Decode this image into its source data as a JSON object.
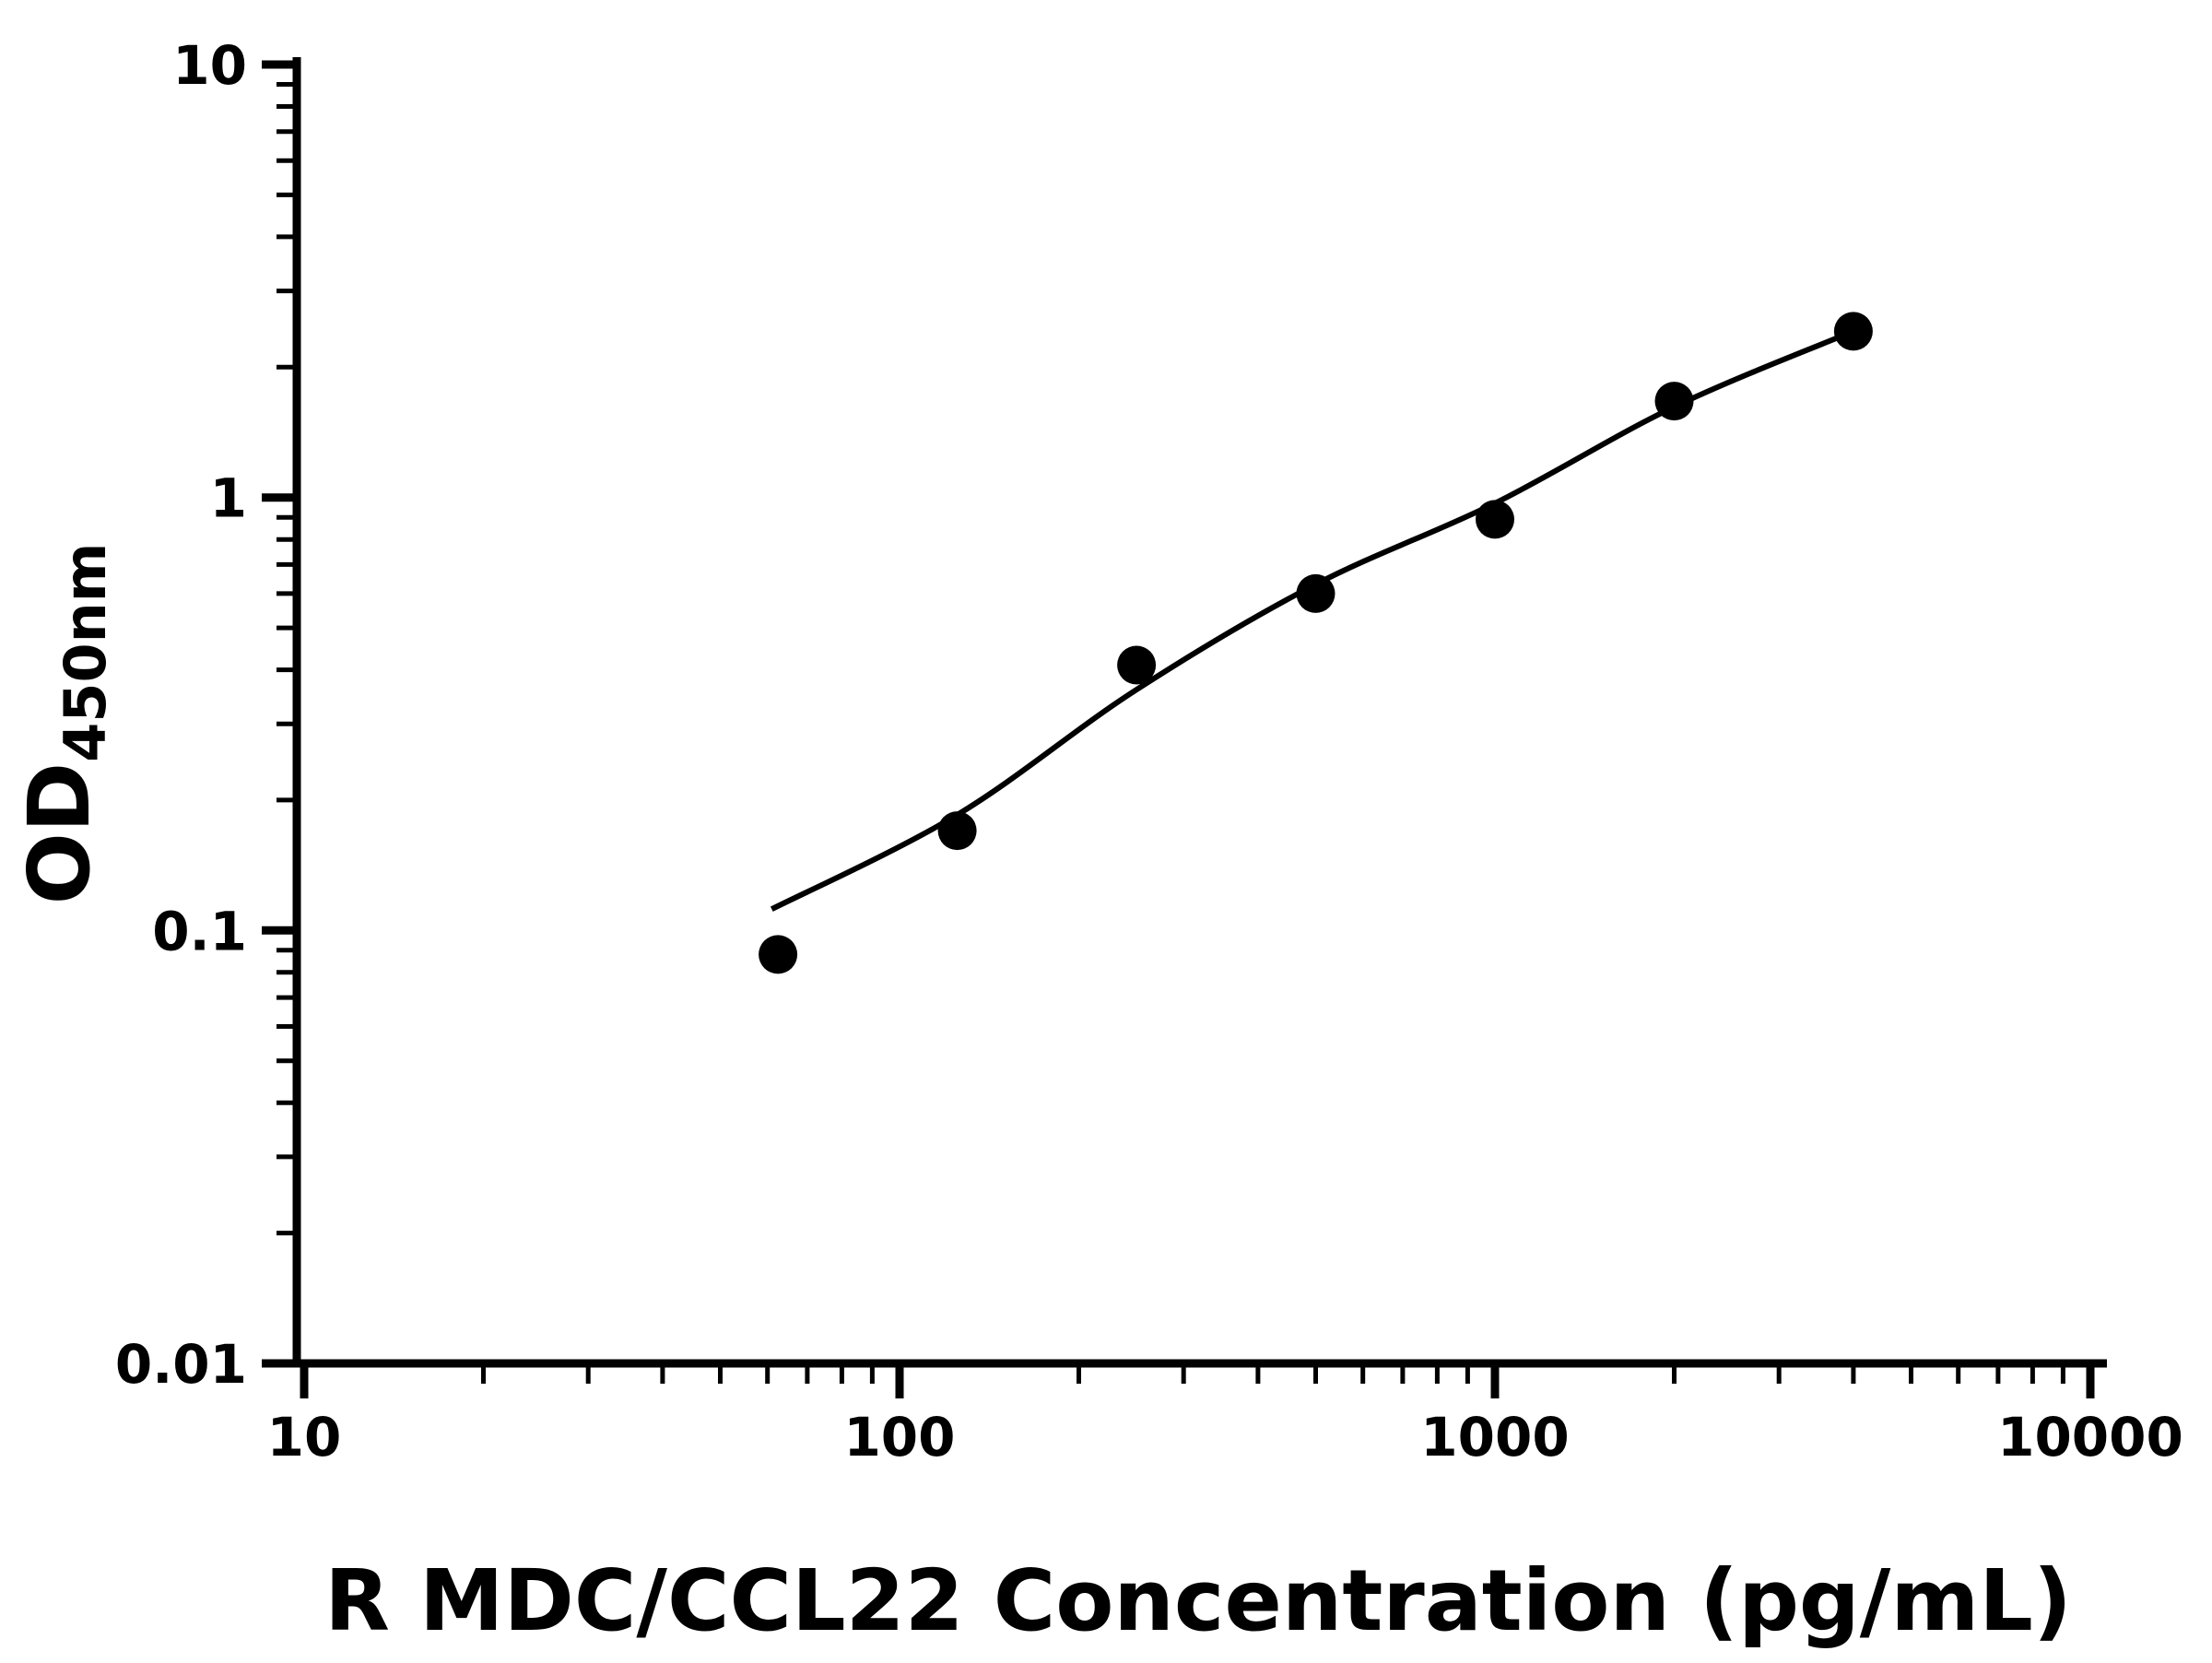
{
  "chart_data": {
    "type": "scatter",
    "title": "",
    "xlabel": "R MDC/CCL22 Concentration (pg/mL)",
    "ylabel_main": "OD",
    "ylabel_sub": "450nm",
    "x_scale": "log",
    "y_scale": "log",
    "xlim": [
      10,
      10000
    ],
    "ylim": [
      0.01,
      10
    ],
    "x_ticks": [
      10,
      100,
      1000,
      10000
    ],
    "x_tick_labels": [
      "10",
      "100",
      "1000",
      "10000"
    ],
    "y_ticks": [
      0.01,
      0.1,
      1,
      10
    ],
    "y_tick_labels": [
      "0.01",
      "0.1",
      "1",
      "10"
    ],
    "grid": false,
    "legend": "none",
    "series": [
      {
        "name": "standard-curve-points",
        "type": "scatter",
        "marker": "circle",
        "color": "#000000",
        "points": [
          {
            "x": 62.5,
            "y": 0.088
          },
          {
            "x": 125,
            "y": 0.17
          },
          {
            "x": 250,
            "y": 0.41
          },
          {
            "x": 500,
            "y": 0.6
          },
          {
            "x": 1000,
            "y": 0.89
          },
          {
            "x": 2000,
            "y": 1.67
          },
          {
            "x": 4000,
            "y": 2.42
          }
        ]
      },
      {
        "name": "fit-line",
        "type": "line",
        "color": "#000000",
        "points": [
          {
            "x": 61,
            "y": 0.112
          },
          {
            "x": 125,
            "y": 0.185
          },
          {
            "x": 250,
            "y": 0.36
          },
          {
            "x": 500,
            "y": 0.63
          },
          {
            "x": 1000,
            "y": 0.97
          },
          {
            "x": 2000,
            "y": 1.62
          },
          {
            "x": 4000,
            "y": 2.42
          }
        ]
      }
    ]
  },
  "colors": {
    "axis": "#000000",
    "marker": "#000000",
    "line": "#000000",
    "background": "#ffffff"
  }
}
